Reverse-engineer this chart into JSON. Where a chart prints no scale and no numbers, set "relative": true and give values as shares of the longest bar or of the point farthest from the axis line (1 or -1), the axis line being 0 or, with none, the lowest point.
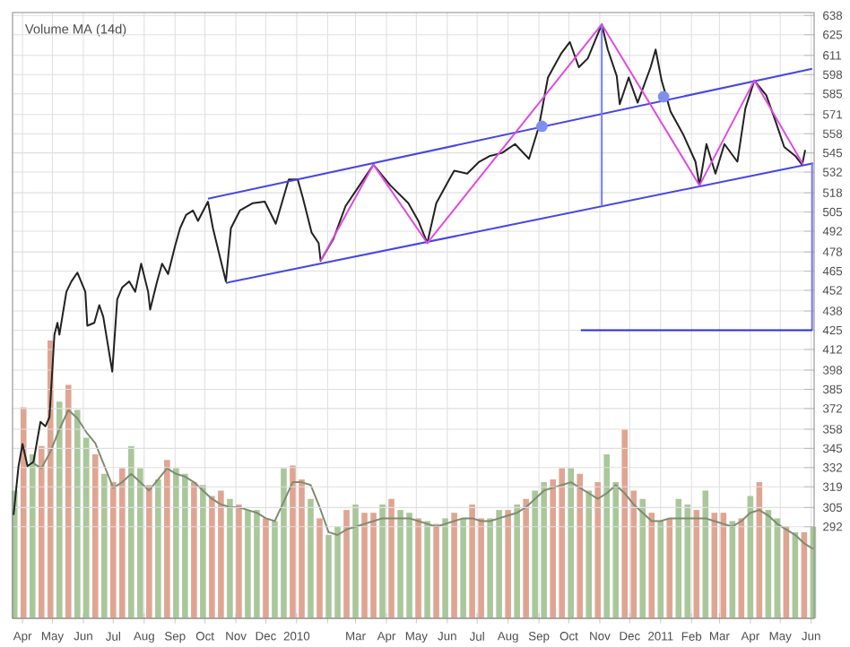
{
  "chart_data": [
    {
      "type": "line",
      "tick_labels": "y",
      "xlim": [
        "2009-03-22",
        "2011-06-04"
      ],
      "ylim": [
        230,
        640
      ],
      "yticks": [
        638,
        625,
        611,
        598,
        585,
        571,
        558,
        545,
        532,
        518,
        505,
        492,
        478,
        465,
        452,
        438,
        425,
        412,
        398,
        385,
        372,
        358,
        345,
        332,
        319,
        305,
        292
      ],
      "grid": "y",
      "series": [
        {
          "color": "#222222",
          "x": [
            "2009-03-23",
            "2009-03-28",
            "2009-04-01",
            "2009-04-06",
            "2009-04-12",
            "2009-04-19",
            "2009-04-24",
            "2009-04-28",
            "2009-05-03",
            "2009-05-06",
            "2009-05-08",
            "2009-05-15",
            "2009-05-20",
            "2009-05-26",
            "2009-06-03",
            "2009-06-05",
            "2009-06-12",
            "2009-06-17",
            "2009-06-21",
            "2009-06-30",
            "2009-07-05",
            "2009-07-10",
            "2009-07-17",
            "2009-07-23",
            "2009-07-29",
            "2009-08-05",
            "2009-08-07",
            "2009-08-14",
            "2009-08-19",
            "2009-08-25",
            "2009-09-01",
            "2009-09-06",
            "2009-09-12",
            "2009-09-19",
            "2009-09-24",
            "2009-10-04",
            "2009-10-09",
            "2009-10-22",
            "2009-10-27",
            "2009-11-05",
            "2009-11-18",
            "2009-11-30",
            "2009-12-11",
            "2009-12-24",
            "2010-01-02",
            "2010-01-07",
            "2010-01-16",
            "2010-01-23",
            "2010-01-25",
            "2010-02-07",
            "2010-02-19",
            "2010-03-05",
            "2010-03-19",
            "2010-04-05",
            "2010-04-23",
            "2010-05-03",
            "2010-05-12",
            "2010-05-21",
            "2010-06-03",
            "2010-06-08",
            "2010-06-21",
            "2010-07-03",
            "2010-07-14",
            "2010-07-26",
            "2010-08-08",
            "2010-08-22",
            "2010-09-01",
            "2010-09-10",
            "2010-09-23",
            "2010-10-02",
            "2010-10-11",
            "2010-10-20",
            "2010-11-03",
            "2010-11-09",
            "2010-11-18",
            "2010-11-21",
            "2010-11-30",
            "2010-12-09",
            "2010-12-22",
            "2010-12-27",
            "2011-01-02",
            "2011-01-11",
            "2011-01-24",
            "2011-02-05",
            "2011-02-09",
            "2011-02-16",
            "2011-02-25",
            "2011-03-06",
            "2011-03-19",
            "2011-03-27",
            "2011-04-05",
            "2011-04-17",
            "2011-04-26",
            "2011-05-05",
            "2011-05-16",
            "2011-05-23",
            "2011-05-26"
          ],
          "values": [
            300,
            333,
            348,
            333,
            336,
            363,
            360,
            366,
            422,
            430,
            422,
            451,
            458,
            464,
            451,
            428,
            430,
            442,
            434,
            397,
            446,
            454,
            458,
            451,
            470,
            451,
            439,
            458,
            470,
            463,
            482,
            494,
            503,
            506,
            499,
            512,
            494,
            458,
            494,
            506,
            511,
            512,
            497,
            527,
            527,
            515,
            491,
            484,
            472,
            487,
            509,
            523,
            537,
            523,
            511,
            499,
            484,
            511,
            527,
            533,
            531,
            539,
            543,
            545,
            551,
            541,
            563,
            596,
            612,
            620,
            603,
            609,
            632,
            615,
            597,
            578,
            596,
            579,
            603,
            615,
            594,
            573,
            557,
            539,
            523,
            551,
            531,
            551,
            539,
            575,
            594,
            584,
            567,
            549,
            543,
            537,
            547
          ]
        },
        {
          "color": "#4646e6",
          "x": [
            "2009-10-04",
            "2011-06-02"
          ],
          "values": [
            514,
            602
          ]
        },
        {
          "color": "#4646e6",
          "x": [
            "2009-10-22",
            "2011-06-03"
          ],
          "values": [
            457,
            538
          ]
        },
        {
          "color": "#e04ce0",
          "x": [
            "2010-01-25",
            "2010-03-19",
            "2010-05-12",
            "2010-11-03",
            "2011-02-09",
            "2011-04-05",
            "2011-05-24"
          ],
          "values": [
            472,
            537,
            484,
            632,
            523,
            594,
            537
          ]
        },
        {
          "color": "#7b7bf0",
          "x": [
            "2010-11-03",
            "2010-11-03"
          ],
          "values": [
            632,
            509
          ]
        },
        {
          "color": "#7b7bf0",
          "x": [
            "2011-06-02",
            "2011-06-02"
          ],
          "values": [
            538,
            425
          ]
        },
        {
          "color": "#2a2ae0",
          "x": [
            "2010-10-13",
            "2011-06-02"
          ],
          "values": [
            425,
            425
          ]
        },
        {
          "type": "scatter",
          "marker": "circle",
          "color": "#7f8ff0",
          "x": [
            "2010-09-04",
            "2011-01-04"
          ],
          "values": [
            563,
            583
          ]
        }
      ]
    },
    {
      "type": "bar",
      "relative": true,
      "grid": "x",
      "annotations": [
        "Volume MA (14d)"
      ],
      "xlim": [
        "2009-03-22",
        "2011-06-04"
      ],
      "xticks": [
        {
          "value": "2009-04-01",
          "label": "Apr"
        },
        {
          "value": "2009-05-01",
          "label": "May"
        },
        {
          "value": "2009-06-01",
          "label": "Jun"
        },
        {
          "value": "2009-07-01",
          "label": "Jul"
        },
        {
          "value": "2009-08-01",
          "label": "Aug"
        },
        {
          "value": "2009-09-01",
          "label": "Sep"
        },
        {
          "value": "2009-10-01",
          "label": "Oct"
        },
        {
          "value": "2009-11-01",
          "label": "Nov"
        },
        {
          "value": "2009-12-01",
          "label": "Dec"
        },
        {
          "value": "2010-01-01",
          "label": "2010"
        },
        {
          "value": "2010-02-01",
          "label": null
        },
        {
          "value": "2010-03-01",
          "label": "Mar"
        },
        {
          "value": "2010-04-01",
          "label": "Apr"
        },
        {
          "value": "2010-05-01",
          "label": "May"
        },
        {
          "value": "2010-06-01",
          "label": "Jun"
        },
        {
          "value": "2010-07-01",
          "label": "Jul"
        },
        {
          "value": "2010-08-01",
          "label": "Aug"
        },
        {
          "value": "2010-09-01",
          "label": "Sep"
        },
        {
          "value": "2010-10-01",
          "label": "Oct"
        },
        {
          "value": "2010-11-01",
          "label": "Nov"
        },
        {
          "value": "2010-12-01",
          "label": "Dec"
        },
        {
          "value": "2011-01-01",
          "label": "2011"
        },
        {
          "value": "2011-02-01",
          "label": "Feb"
        },
        {
          "value": "2011-03-01",
          "label": "Mar"
        },
        {
          "value": "2011-04-01",
          "label": "Apr"
        },
        {
          "value": "2011-05-01",
          "label": "May"
        },
        {
          "value": "2011-06-01",
          "label": "Jun"
        }
      ],
      "x": [
        "2009-03-24",
        "2009-04-02",
        "2009-04-11",
        "2009-04-20",
        "2009-04-29",
        "2009-05-08",
        "2009-05-17",
        "2009-05-26",
        "2009-06-04",
        "2009-06-13",
        "2009-06-22",
        "2009-07-01",
        "2009-07-10",
        "2009-07-19",
        "2009-07-28",
        "2009-08-06",
        "2009-08-15",
        "2009-08-24",
        "2009-09-02",
        "2009-09-11",
        "2009-09-20",
        "2009-09-29",
        "2009-10-08",
        "2009-10-17",
        "2009-10-26",
        "2009-11-04",
        "2009-11-13",
        "2009-11-22",
        "2009-12-01",
        "2009-12-10",
        "2009-12-19",
        "2009-12-28",
        "2010-01-06",
        "2010-01-15",
        "2010-01-24",
        "2010-02-02",
        "2010-02-11",
        "2010-02-20",
        "2010-03-01",
        "2010-03-10",
        "2010-03-19",
        "2010-03-28",
        "2010-04-06",
        "2010-04-15",
        "2010-04-24",
        "2010-05-03",
        "2010-05-12",
        "2010-05-21",
        "2010-05-30",
        "2010-06-08",
        "2010-06-17",
        "2010-06-26",
        "2010-07-05",
        "2010-07-14",
        "2010-07-23",
        "2010-08-01",
        "2010-08-10",
        "2010-08-19",
        "2010-08-28",
        "2010-09-06",
        "2010-09-15",
        "2010-09-24",
        "2010-10-03",
        "2010-10-12",
        "2010-10-21",
        "2010-10-30",
        "2010-11-08",
        "2010-11-17",
        "2010-11-26",
        "2010-12-05",
        "2010-12-14",
        "2010-12-23",
        "2011-01-01",
        "2011-01-10",
        "2011-01-19",
        "2011-01-28",
        "2011-02-06",
        "2011-02-15",
        "2011-02-24",
        "2011-03-05",
        "2011-03-14",
        "2011-03-23",
        "2011-04-01",
        "2011-04-10",
        "2011-04-19",
        "2011-04-28",
        "2011-05-07",
        "2011-05-16",
        "2011-05-25",
        "2011-06-03"
      ],
      "series": [
        {
          "colors": [
            "#a9c79b",
            "#dfa593",
            "#a9c79b",
            "#dfa593",
            "#dfa593",
            "#a9c79b",
            "#dfa593",
            "#a9c79b",
            "#a9c79b",
            "#dfa593",
            "#a9c79b",
            "#dfa593",
            "#dfa593",
            "#a9c79b",
            "#a9c79b",
            "#dfa593",
            "#a9c79b",
            "#dfa593",
            "#a9c79b",
            "#a9c79b",
            "#dfa593",
            "#a9c79b",
            "#dfa593",
            "#dfa593",
            "#a9c79b",
            "#dfa593",
            "#a9c79b",
            "#a9c79b",
            "#dfa593",
            "#a9c79b",
            "#a9c79b",
            "#dfa593",
            "#dfa593",
            "#a9c79b",
            "#dfa593",
            "#a9c79b",
            "#a9c79b",
            "#dfa593",
            "#a9c79b",
            "#dfa593",
            "#dfa593",
            "#a9c79b",
            "#dfa593",
            "#a9c79b",
            "#a9c79b",
            "#dfa593",
            "#a9c79b",
            "#dfa593",
            "#a9c79b",
            "#dfa593",
            "#a9c79b",
            "#dfa593",
            "#dfa593",
            "#a9c79b",
            "#a9c79b",
            "#dfa593",
            "#a9c79b",
            "#dfa593",
            "#a9c79b",
            "#a9c79b",
            "#dfa593",
            "#dfa593",
            "#a9c79b",
            "#dfa593",
            "#a9c79b",
            "#dfa593",
            "#a9c79b",
            "#a9c79b",
            "#dfa593",
            "#dfa593",
            "#a9c79b",
            "#dfa593",
            "#a9c79b",
            "#dfa593",
            "#a9c79b",
            "#a9c79b",
            "#dfa593",
            "#a9c79b",
            "#dfa593",
            "#dfa593",
            "#a9c79b",
            "#dfa593",
            "#a9c79b",
            "#dfa593",
            "#a9c79b",
            "#a9c79b",
            "#dfa593",
            "#a9c79b",
            "#dfa593",
            "#a9c79b"
          ],
          "values": [
            0.46,
            0.76,
            0.59,
            0.62,
            1,
            0.78,
            0.84,
            0.75,
            0.65,
            0.59,
            0.52,
            0.49,
            0.54,
            0.62,
            0.54,
            0.48,
            0.5,
            0.57,
            0.54,
            0.52,
            0.49,
            0.48,
            0.44,
            0.46,
            0.43,
            0.41,
            0.39,
            0.39,
            0.36,
            0.35,
            0.54,
            0.55,
            0.5,
            0.43,
            0.36,
            0.3,
            0.33,
            0.39,
            0.41,
            0.38,
            0.38,
            0.41,
            0.43,
            0.39,
            0.38,
            0.36,
            0.35,
            0.34,
            0.36,
            0.38,
            0.36,
            0.41,
            0.36,
            0.36,
            0.39,
            0.39,
            0.41,
            0.43,
            0.46,
            0.49,
            0.5,
            0.54,
            0.54,
            0.52,
            0.46,
            0.49,
            0.59,
            0.49,
            0.68,
            0.46,
            0.43,
            0.38,
            0.35,
            0.36,
            0.43,
            0.41,
            0.39,
            0.46,
            0.38,
            0.38,
            0.35,
            0.36,
            0.44,
            0.49,
            0.39,
            0.36,
            0.33,
            0.31,
            0.31,
            0.33
          ]
        },
        {
          "type": "line",
          "color": "#7d8c72",
          "values": [
            null,
            null,
            0.56,
            0.54,
            0.6,
            0.68,
            0.75,
            0.72,
            0.67,
            0.63,
            0.55,
            0.47,
            0.49,
            0.52,
            0.49,
            0.46,
            0.5,
            0.54,
            0.52,
            0.51,
            0.49,
            0.46,
            0.43,
            0.41,
            0.4,
            0.4,
            0.39,
            0.38,
            0.36,
            0.35,
            0.42,
            0.49,
            0.49,
            0.48,
            0.4,
            0.31,
            0.3,
            0.32,
            0.33,
            0.34,
            0.35,
            0.36,
            0.36,
            0.36,
            0.36,
            0.35,
            0.34,
            0.33,
            0.34,
            0.35,
            0.36,
            0.36,
            0.35,
            0.35,
            0.36,
            0.37,
            0.38,
            0.4,
            0.43,
            0.46,
            0.47,
            0.48,
            0.49,
            0.47,
            0.45,
            0.43,
            0.45,
            0.48,
            0.45,
            0.41,
            0.38,
            0.35,
            0.35,
            0.36,
            0.36,
            0.36,
            0.36,
            0.36,
            0.35,
            0.34,
            0.33,
            0.35,
            0.38,
            0.39,
            0.37,
            0.34,
            0.32,
            0.3,
            0.27,
            0.25
          ]
        }
      ]
    }
  ]
}
